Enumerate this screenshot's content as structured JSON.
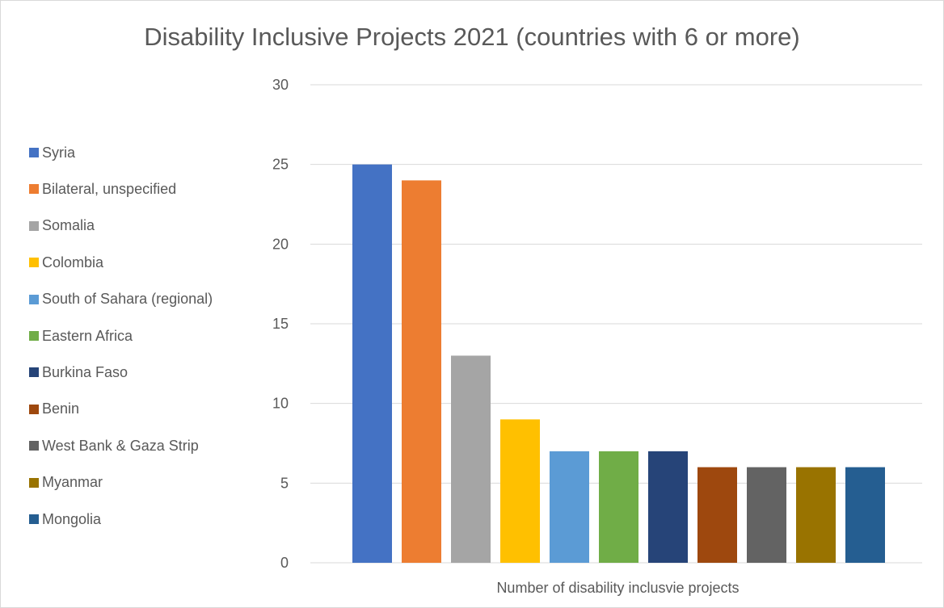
{
  "chart_data": {
    "type": "bar",
    "title": "Disability Inclusive Projects 2021 (countries with 6 or more)",
    "xlabel": "Number of disability inclusvie projects",
    "ylabel": "",
    "ylim": [
      0,
      30
    ],
    "yticks": [
      0,
      5,
      10,
      15,
      20,
      25,
      30
    ],
    "grid": true,
    "legend_position": "left",
    "series": [
      {
        "name": "Syria",
        "value": 25,
        "color": "#4472C4"
      },
      {
        "name": "Bilateral, unspecified",
        "value": 24,
        "color": "#ED7D31"
      },
      {
        "name": "Somalia",
        "value": 13,
        "color": "#A5A5A5"
      },
      {
        "name": "Colombia",
        "value": 9,
        "color": "#FFC000"
      },
      {
        "name": "South of Sahara (regional)",
        "value": 7,
        "color": "#5B9BD5"
      },
      {
        "name": "Eastern Africa",
        "value": 7,
        "color": "#70AD47"
      },
      {
        "name": "Burkina Faso",
        "value": 7,
        "color": "#264478"
      },
      {
        "name": "Benin",
        "value": 6,
        "color": "#9E480E"
      },
      {
        "name": "West Bank & Gaza Strip",
        "value": 6,
        "color": "#636363"
      },
      {
        "name": "Myanmar",
        "value": 6,
        "color": "#997300"
      },
      {
        "name": "Mongolia",
        "value": 6,
        "color": "#255E91"
      }
    ]
  }
}
